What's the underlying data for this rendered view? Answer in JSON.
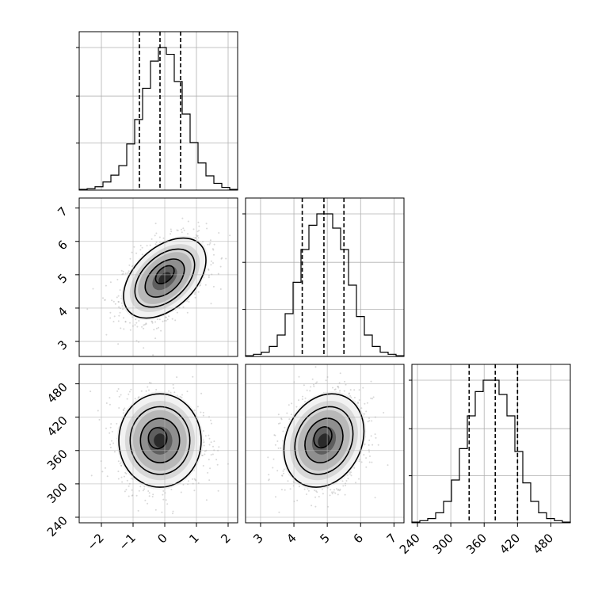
{
  "chart_data": {
    "type": "corner",
    "title": "",
    "grid": true,
    "quantile_lines": [
      0.16,
      0.5,
      0.84
    ],
    "parameters": [
      {
        "range": [
          -2.7,
          2.3
        ],
        "ticks": [
          -2,
          -1,
          0,
          1,
          2
        ],
        "tick_labels": [
          "−2",
          "−1",
          "0",
          "1",
          "2"
        ],
        "quantiles": [
          -0.8,
          -0.15,
          0.5
        ],
        "histogram": {
          "bin_start": -2.7,
          "bin_width": 0.25,
          "counts": [
            1,
            2,
            5,
            12,
            22,
            36,
            68,
            104,
            150,
            190,
            210,
            200,
            160,
            112,
            70,
            40,
            21,
            10,
            4,
            1
          ]
        }
      },
      {
        "range": [
          2.55,
          7.3
        ],
        "ticks": [
          3,
          4,
          5,
          6,
          7
        ],
        "tick_labels": [
          "3",
          "4",
          "5",
          "6",
          "7"
        ],
        "quantiles": [
          4.25,
          4.9,
          5.5
        ],
        "histogram": {
          "bin_start": 2.55,
          "bin_width": 0.2375,
          "counts": [
            1,
            3,
            6,
            14,
            30,
            60,
            104,
            150,
            184,
            200,
            200,
            180,
            150,
            100,
            56,
            30,
            14,
            6,
            3,
            1
          ]
        }
      },
      {
        "range": [
          230,
          515
        ],
        "ticks": [
          240,
          300,
          360,
          420,
          480
        ],
        "tick_labels": [
          "240",
          "300",
          "360",
          "420",
          "480"
        ],
        "quantiles": [
          333,
          380,
          420
        ],
        "histogram": {
          "bin_start": 230,
          "bin_width": 14.25,
          "counts": [
            1,
            3,
            6,
            14,
            30,
            60,
            104,
            150,
            184,
            200,
            200,
            180,
            150,
            100,
            56,
            30,
            14,
            6,
            3,
            1
          ]
        }
      }
    ],
    "pairs": [
      {
        "x": 0,
        "y": 1,
        "center": [
          0.0,
          4.9
        ],
        "sigma": [
          0.65,
          0.6
        ],
        "rho": 0.45
      },
      {
        "x": 0,
        "y": 2,
        "center": [
          -0.15,
          378
        ],
        "sigma": [
          0.65,
          42
        ],
        "rho": 0.0
      },
      {
        "x": 1,
        "y": 2,
        "center": [
          4.9,
          378
        ],
        "sigma": [
          0.6,
          42
        ],
        "rho": 0.2
      }
    ],
    "contour_levels": [
      0.5,
      1.0,
      1.5,
      2.0
    ]
  }
}
